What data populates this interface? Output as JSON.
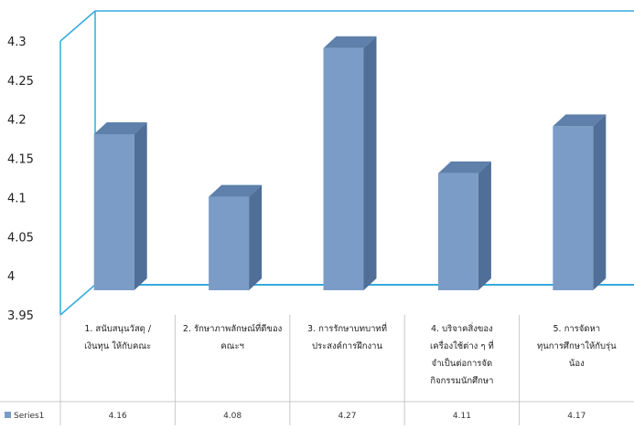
{
  "chart_data": {
    "type": "bar",
    "title": "",
    "xlabel": "",
    "ylabel": "",
    "ylim": [
      3.95,
      4.3
    ],
    "yticks": [
      3.95,
      4,
      4.05,
      4.1,
      4.15,
      4.2,
      4.25,
      4.3
    ],
    "ytick_labels": [
      "3.95",
      "4",
      "4.05",
      "4.1",
      "4.15",
      "4.2",
      "4.25",
      "4.3"
    ],
    "grid": false,
    "three_d": true,
    "legend": "bottom-left data table",
    "categories": [
      [
        "1. สนับสนุนวัสดุ /",
        "เงินทุน ให้กับคณะ"
      ],
      [
        "2. รักษาภาพลักษณ์ที่ดีของ",
        "คณะฯ"
      ],
      [
        "3. การรักษาบทบาทที่",
        "ประสงค์การฝึกงาน"
      ],
      [
        "4. บริจาคสิ่งของ",
        "เครื่องใช้ต่าง ๆ ที่",
        "จำเป็นต่อการจัด",
        "กิจกรรมนักศึกษา"
      ],
      [
        "5. การจัดหา",
        "ทุนการศึกษาให้กับรุ่น",
        "น้อง"
      ]
    ],
    "series": [
      {
        "name": "Series1",
        "values": [
          4.16,
          4.08,
          4.27,
          4.11,
          4.17
        ],
        "value_labels": [
          "4.16",
          "4.08",
          "4.27",
          "4.11",
          "4.17"
        ]
      }
    ],
    "colors": {
      "bar_front": "#7b9cc7",
      "bar_side": "#4f6f98",
      "bar_top": "#5e80ab",
      "floor_line": "#33aadd",
      "frame": "#33aadd",
      "table_border": "#c8c8c8"
    }
  }
}
